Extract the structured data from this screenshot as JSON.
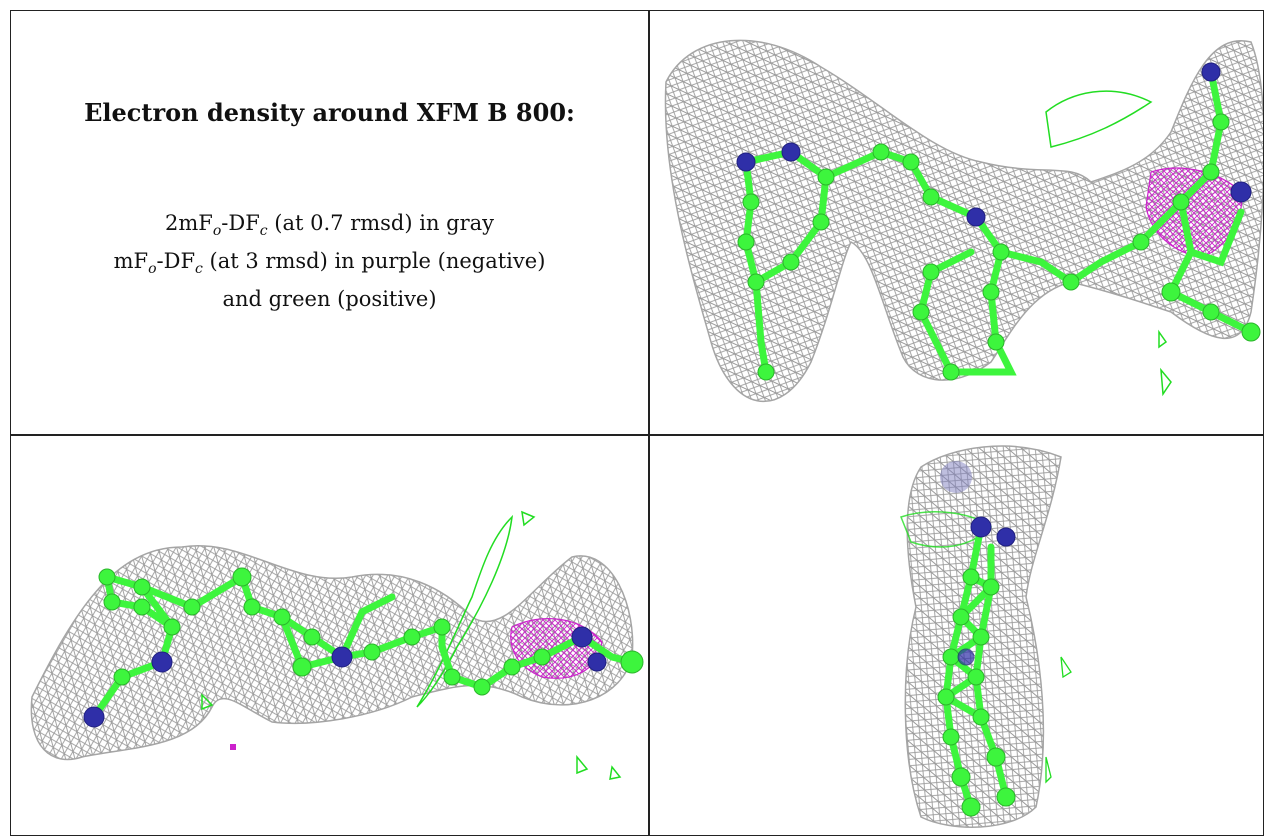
{
  "caption": {
    "title": "Electron density around XFM B 800:",
    "line1": {
      "pre": "2mF",
      "sub1": "o",
      "mid": "-DF",
      "sub2": "c",
      "post": " (at 0.7 rmsd) in gray"
    },
    "line2": {
      "pre": "mF",
      "sub1": "o",
      "mid": "-DF",
      "sub2": "c",
      "post": " (at 3 rmsd) in purple (negative)"
    },
    "line3": "and green (positive)"
  },
  "colors": {
    "mesh_gray": "#9a9a9a",
    "carbon_green": "#3df53d",
    "nitrogen_blue": "#2f2fa8",
    "negative_purple": "#cc22cc",
    "positive_green": "#22dd22",
    "border": "#222222"
  },
  "panels": [
    "view-front",
    "view-side",
    "view-end"
  ]
}
